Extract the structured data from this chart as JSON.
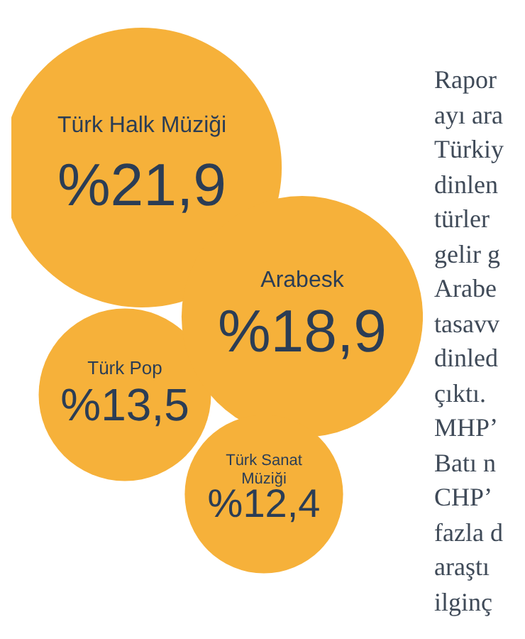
{
  "chart_data": {
    "type": "other",
    "categories": [
      "Türk Halk Müziği",
      "Arabesk",
      "Türk Pop",
      "Türk Sanat Müziği"
    ],
    "values": [
      21.9,
      18.9,
      13.5,
      12.4
    ],
    "value_labels": [
      "%21,9",
      "%18,9",
      "%13,5",
      "%12,4"
    ],
    "colors": [
      "#f6b13a",
      "#f6b13a",
      "#f6b13a",
      "#f6b13a"
    ],
    "annotations": [
      "Rapor",
      "ayı ara",
      "Türkiy",
      "dinlen",
      "türler",
      "gelir g",
      "Arabe",
      "tasavv",
      "dinled",
      "çıktı.",
      "MHP’",
      "Batı n",
      "CHP’",
      "fazla d",
      "araştı",
      "ilginç"
    ]
  }
}
